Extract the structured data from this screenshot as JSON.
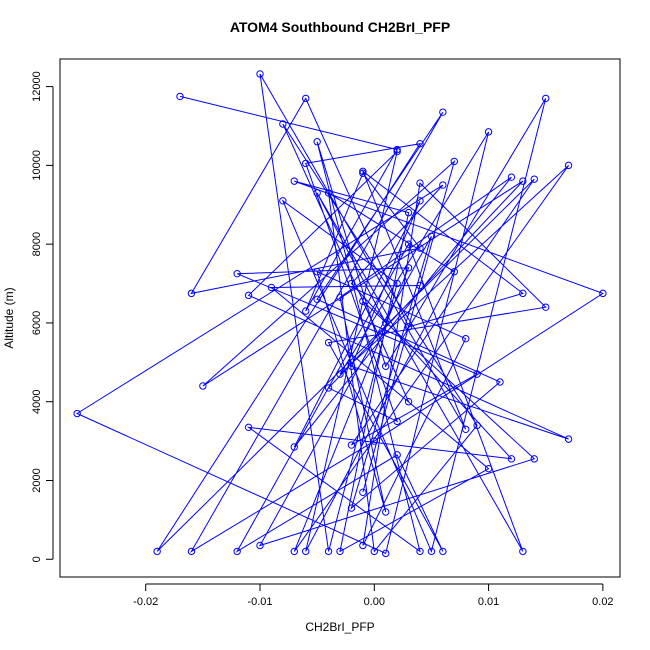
{
  "chart_data": {
    "type": "line",
    "title": "ATOM4 Southbound CH2BrI_PFP",
    "xlabel": "CH2BrI_PFP",
    "ylabel": "Altitude (m)",
    "xlim": [
      -0.0275,
      0.0215
    ],
    "ylim": [
      -450,
      12700
    ],
    "xticks": [
      -0.02,
      -0.01,
      0.0,
      0.01,
      0.02
    ],
    "xtick_labels": [
      "-0.02",
      "-0.01",
      "0.00",
      "0.01",
      "0.02"
    ],
    "yticks": [
      0,
      2000,
      4000,
      6000,
      8000,
      10000,
      12000
    ],
    "ytick_labels": [
      "0",
      "2000",
      "4000",
      "6000",
      "8000",
      "10000",
      "12000"
    ],
    "grid": false,
    "marker": "open-circle",
    "series_color": "#0000ff",
    "points": [
      {
        "x": -0.017,
        "y": 11750
      },
      {
        "x": 0.002,
        "y": 10400
      },
      {
        "x": -0.006,
        "y": 6300
      },
      {
        "x": -0.001,
        "y": 9800
      },
      {
        "x": 0.004,
        "y": 7900
      },
      {
        "x": -0.016,
        "y": 6750
      },
      {
        "x": -0.006,
        "y": 11700
      },
      {
        "x": 0.003,
        "y": 5900
      },
      {
        "x": 0.013,
        "y": 6750
      },
      {
        "x": -0.001,
        "y": 9850
      },
      {
        "x": 0.008,
        "y": 3300
      },
      {
        "x": -0.01,
        "y": 12320
      },
      {
        "x": -0.004,
        "y": 200
      },
      {
        "x": 0.002,
        "y": 7000
      },
      {
        "x": -0.008,
        "y": 9100
      },
      {
        "x": 0.005,
        "y": 200
      },
      {
        "x": 0.015,
        "y": 11700
      },
      {
        "x": 0.001,
        "y": 4900
      },
      {
        "x": -0.005,
        "y": 10600
      },
      {
        "x": 0.004,
        "y": 200
      },
      {
        "x": -0.011,
        "y": 3350
      },
      {
        "x": 0.012,
        "y": 2550
      },
      {
        "x": -0.002,
        "y": 7000
      },
      {
        "x": 0.006,
        "y": 9500
      },
      {
        "x": -0.026,
        "y": 3700
      },
      {
        "x": 0.001,
        "y": 150
      },
      {
        "x": 0.01,
        "y": 10850
      },
      {
        "x": -0.003,
        "y": 4700
      },
      {
        "x": 0.017,
        "y": 10000
      },
      {
        "x": -0.007,
        "y": 200
      },
      {
        "x": 0.003,
        "y": 7400
      },
      {
        "x": -0.012,
        "y": 7250
      },
      {
        "x": 0.009,
        "y": 4700
      },
      {
        "x": -0.002,
        "y": 2900
      },
      {
        "x": 0.014,
        "y": 9650
      },
      {
        "x": -0.019,
        "y": 200
      },
      {
        "x": 0.004,
        "y": 10550
      },
      {
        "x": -0.006,
        "y": 10050
      },
      {
        "x": 0.002,
        "y": 3500
      },
      {
        "x": -0.004,
        "y": 4350
      },
      {
        "x": 0.013,
        "y": 9600
      },
      {
        "x": -0.015,
        "y": 4400
      },
      {
        "x": 0.007,
        "y": 10100
      },
      {
        "x": -0.001,
        "y": 1700
      },
      {
        "x": 0.004,
        "y": 6950
      },
      {
        "x": -0.009,
        "y": 6900
      },
      {
        "x": 0.01,
        "y": 2300
      },
      {
        "x": -0.003,
        "y": 200
      },
      {
        "x": 0.003,
        "y": 8800
      },
      {
        "x": -0.007,
        "y": 9600
      },
      {
        "x": 0.02,
        "y": 6750
      },
      {
        "x": 0.0,
        "y": 3000
      },
      {
        "x": -0.016,
        "y": 200
      },
      {
        "x": 0.006,
        "y": 11350
      },
      {
        "x": -0.005,
        "y": 6600
      },
      {
        "x": 0.011,
        "y": 4500
      },
      {
        "x": -0.002,
        "y": 1300
      },
      {
        "x": 0.005,
        "y": 8200
      },
      {
        "x": -0.01,
        "y": 350
      },
      {
        "x": 0.014,
        "y": 2550
      },
      {
        "x": -0.001,
        "y": 6550
      },
      {
        "x": 0.003,
        "y": 4000
      },
      {
        "x": -0.008,
        "y": 11050
      },
      {
        "x": 0.009,
        "y": 3400
      },
      {
        "x": 0.0,
        "y": 200
      },
      {
        "x": -0.004,
        "y": 9300
      },
      {
        "x": 0.007,
        "y": 7300
      },
      {
        "x": -0.006,
        "y": 200
      },
      {
        "x": 0.002,
        "y": 10350
      },
      {
        "x": -0.011,
        "y": 6700
      },
      {
        "x": 0.017,
        "y": 3050
      },
      {
        "x": -0.002,
        "y": 4900
      },
      {
        "x": 0.004,
        "y": 9100
      },
      {
        "x": -0.007,
        "y": 2850
      },
      {
        "x": 0.012,
        "y": 9700
      },
      {
        "x": -0.003,
        "y": 6650
      },
      {
        "x": 0.001,
        "y": 1200
      },
      {
        "x": -0.005,
        "y": 7300
      },
      {
        "x": 0.008,
        "y": 5600
      },
      {
        "x": -0.001,
        "y": 350
      },
      {
        "x": 0.004,
        "y": 9550
      },
      {
        "x": 0.015,
        "y": 6400
      },
      {
        "x": -0.004,
        "y": 5500
      },
      {
        "x": 0.006,
        "y": 200
      },
      {
        "x": 0.002,
        "y": 2650
      },
      {
        "x": -0.012,
        "y": 200
      },
      {
        "x": 0.003,
        "y": 8000
      },
      {
        "x": 0.013,
        "y": 200
      },
      {
        "x": -0.005,
        "y": 9300
      },
      {
        "x": 0.001,
        "y": 6000
      }
    ]
  }
}
